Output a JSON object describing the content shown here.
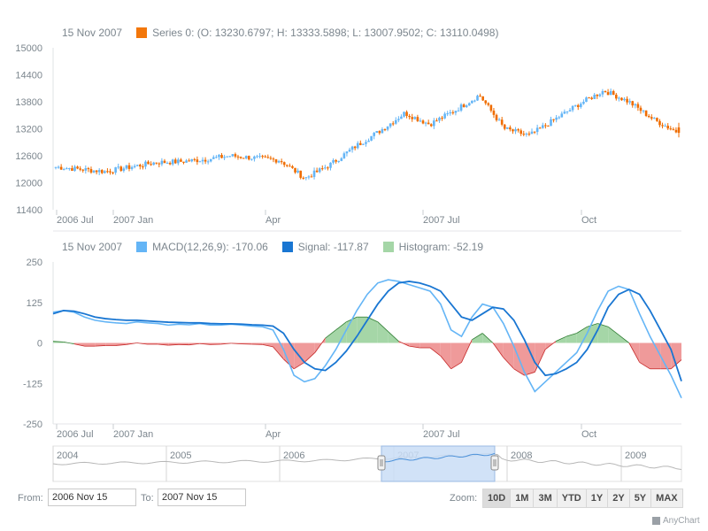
{
  "price_legend": {
    "date": "15 Nov 2007",
    "series_text": "Series 0: (O: 13230.6797; H: 13333.5898; L: 13007.9502; C: 13110.0498)",
    "color": "#f3770a"
  },
  "macd_legend": {
    "date": "15 Nov 2007",
    "macd_text": "MACD(12,26,9): -170.06",
    "signal_text": "Signal: -117.87",
    "hist_text": "Histogram: -52.19",
    "macd_color": "#64b5f6",
    "signal_color": "#1976d2",
    "hist_color": "#a5d6a7"
  },
  "range": {
    "from_label": "From:",
    "from_value": "2006 Nov 15",
    "to_label": "To:",
    "to_value": "2007 Nov 15",
    "zoom_label": "Zoom:",
    "buttons": [
      "10D",
      "1M",
      "3M",
      "YTD",
      "1Y",
      "2Y",
      "5Y",
      "MAX"
    ]
  },
  "credits": "AnyChart",
  "colors": {
    "up": "#64b5f6",
    "down": "#ef6c00",
    "macd": "#64b5f6",
    "signal": "#1976d2",
    "hist_pos": "#a5d6a7",
    "hist_neg": "#ef9a9a",
    "scroller_sel": "#c9ddf6"
  },
  "chart_data": [
    {
      "type": "ohlc",
      "series_name": "Series 0",
      "y_ticks": [
        11400,
        12000,
        12600,
        13200,
        13800,
        14400,
        15000
      ],
      "ylim": [
        11400,
        15000
      ],
      "x_ticks": [
        "2006 Jul",
        "2007 Jan",
        "Apr",
        "2007 Jul",
        "Oct"
      ],
      "last_point": {
        "date": "15 Nov 2007",
        "open": 13230.6797,
        "high": 13333.5898,
        "low": 13007.9502,
        "close": 13110.0498
      },
      "close_path": [
        {
          "date": "2006 Jun",
          "close": 12350
        },
        {
          "date": "2006 Jul",
          "close": 12300
        },
        {
          "date": "2006 Aug",
          "close": 12250
        },
        {
          "date": "2006 Sep",
          "close": 12350
        },
        {
          "date": "2006 Oct",
          "close": 12450
        },
        {
          "date": "2006 Nov",
          "close": 12470
        },
        {
          "date": "2006 Dec",
          "close": 12520
        },
        {
          "date": "2007 Jan",
          "close": 12600
        },
        {
          "date": "2007 Feb",
          "close": 12550
        },
        {
          "date": "2007 Mar",
          "close": 12500
        },
        {
          "date": "2007 Mar",
          "close": 12100
        },
        {
          "date": "2007 Apr",
          "close": 12400
        },
        {
          "date": "2007 Apr",
          "close": 12800
        },
        {
          "date": "2007 May",
          "close": 13150
        },
        {
          "date": "2007 Jun",
          "close": 13550
        },
        {
          "date": "2007 Jul",
          "close": 13300
        },
        {
          "date": "2007 Aug",
          "close": 13600
        },
        {
          "date": "2007 Aug",
          "close": 13950
        },
        {
          "date": "2007 Sep",
          "close": 13200
        },
        {
          "date": "2007 Sep",
          "close": 13050
        },
        {
          "date": "2007 Oct",
          "close": 13400
        },
        {
          "date": "2007 Oct",
          "close": 13750
        },
        {
          "date": "2007 Nov",
          "close": 14050
        },
        {
          "date": "2007 Nov",
          "close": 13800
        },
        {
          "date": "2007 Dec",
          "close": 13400
        },
        {
          "date": "2007 Dec",
          "close": 13110
        }
      ]
    },
    {
      "type": "macd",
      "series": [
        {
          "name": "MACD(12,26,9)",
          "last": -170.06
        },
        {
          "name": "Signal",
          "last": -117.87
        },
        {
          "name": "Histogram",
          "last": -52.19
        }
      ],
      "y_ticks": [
        -250,
        -125,
        0,
        125,
        250
      ],
      "ylim": [
        -250,
        250
      ],
      "x_ticks": [
        "2006 Jul",
        "2007 Jan",
        "Apr",
        "2007 Jul",
        "Oct"
      ],
      "macd_path": [
        95,
        100,
        95,
        80,
        70,
        65,
        62,
        60,
        65,
        62,
        60,
        55,
        58,
        56,
        60,
        55,
        55,
        58,
        55,
        52,
        50,
        40,
        -20,
        -100,
        -120,
        -110,
        -70,
        -20,
        40,
        100,
        150,
        185,
        195,
        190,
        180,
        170,
        160,
        120,
        40,
        20,
        80,
        120,
        110,
        60,
        -10,
        -90,
        -150,
        -120,
        -90,
        -60,
        -30,
        30,
        100,
        160,
        175,
        165,
        90,
        20,
        -40,
        -100,
        -170
      ],
      "signal_path": [
        90,
        100,
        98,
        90,
        80,
        75,
        72,
        70,
        70,
        68,
        66,
        64,
        63,
        62,
        62,
        60,
        59,
        59,
        58,
        56,
        55,
        52,
        30,
        -20,
        -60,
        -80,
        -85,
        -60,
        -25,
        20,
        70,
        120,
        160,
        185,
        190,
        185,
        175,
        160,
        120,
        80,
        70,
        90,
        110,
        105,
        70,
        10,
        -60,
        -100,
        -95,
        -80,
        -60,
        -20,
        40,
        110,
        150,
        165,
        150,
        100,
        40,
        -20,
        -118
      ],
      "hist_path": [
        5,
        3,
        -3,
        -10,
        -10,
        -8,
        -8,
        -5,
        0,
        -4,
        -4,
        -7,
        -5,
        -6,
        -2,
        -5,
        -4,
        -1,
        -3,
        -4,
        -5,
        -12,
        -50,
        -80,
        -60,
        -30,
        15,
        40,
        65,
        80,
        80,
        65,
        35,
        5,
        -10,
        -15,
        -15,
        -40,
        -80,
        -60,
        10,
        30,
        0,
        -45,
        -80,
        -100,
        -90,
        -20,
        5,
        20,
        30,
        50,
        60,
        50,
        25,
        0,
        -60,
        -80,
        -80,
        -80,
        -52
      ]
    },
    {
      "type": "scroller",
      "labels": [
        "2004",
        "2005",
        "2006",
        "2007",
        "2008",
        "2009"
      ]
    }
  ]
}
